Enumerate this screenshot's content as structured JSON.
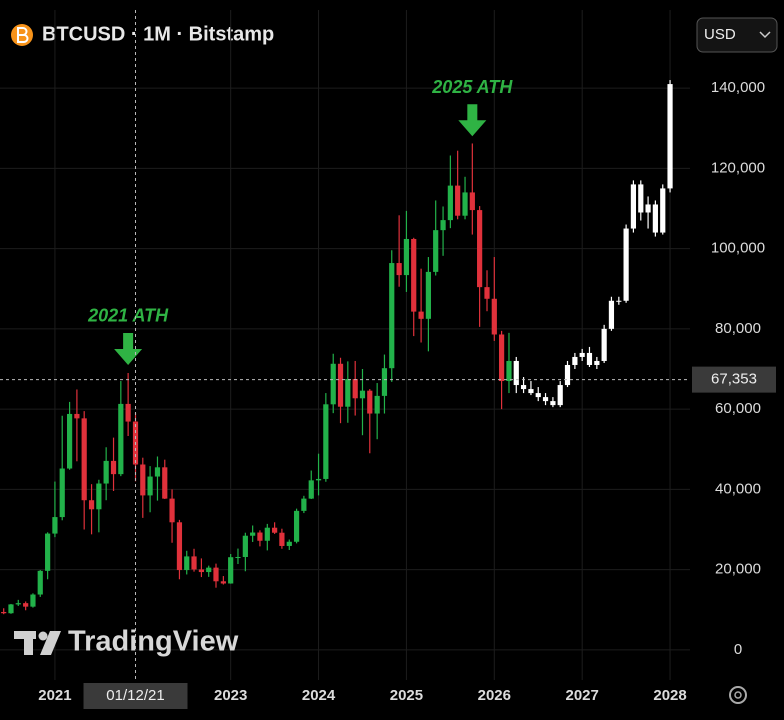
{
  "chart_data": {
    "type": "candlestick",
    "title": "BTCUSD · 1M · Bitstamp",
    "xlim": [
      2020.375,
      2028.227
    ],
    "ylim": [
      -7500,
      147000
    ],
    "xticks": [
      2021,
      2023,
      2024,
      2025,
      2026,
      2027,
      2028
    ],
    "yticks": [
      0,
      {
        "value": 20000,
        "label": "20,000"
      },
      {
        "value": 40000,
        "label": "40,000"
      },
      {
        "value": 60000,
        "label": "60,000"
      },
      {
        "value": 80000,
        "label": "80,000"
      },
      {
        "value": 100000,
        "label": "100,000"
      },
      {
        "value": 120000,
        "label": "120,000"
      },
      {
        "value": 140000,
        "label": "140,000"
      }
    ],
    "grid": true,
    "series": [
      {
        "up_color": "#22b24a",
        "down_color": "#e0313b",
        "x": [
          2020.417,
          2020.5,
          2020.583,
          2020.667,
          2020.75,
          2020.833,
          2020.917,
          2021,
          2021.083,
          2021.167,
          2021.25,
          2021.333,
          2021.417,
          2021.5,
          2021.583,
          2021.667,
          2021.75,
          2021.833,
          2021.917,
          2022,
          2022.083,
          2022.167,
          2022.25,
          2022.333,
          2022.417,
          2022.5,
          2022.583,
          2022.667,
          2022.75,
          2022.833,
          2022.917,
          2023,
          2023.083,
          2023.167,
          2023.25,
          2023.333,
          2023.417,
          2023.5,
          2023.583,
          2023.667,
          2023.75,
          2023.833,
          2023.917,
          2024,
          2024.083,
          2024.167,
          2024.25,
          2024.333,
          2024.417,
          2024.5,
          2024.583,
          2024.667,
          2024.75,
          2024.833,
          2024.917,
          2025,
          2025.083,
          2025.167,
          2025.25,
          2025.333,
          2025.417,
          2025.5,
          2025.583,
          2025.667,
          2025.75,
          2025.833,
          2025.917,
          2026,
          2026.083,
          2026.167
        ],
        "open": [
          9450,
          9140,
          11340,
          11650,
          10780,
          13800,
          19700,
          28990,
          33100,
          45200,
          58800,
          57700,
          37300,
          35040,
          41460,
          47100,
          43800,
          61300,
          56900,
          46200,
          38500,
          43200,
          45500,
          37700,
          31800,
          19900,
          23300,
          20050,
          19400,
          20500,
          17100,
          16550,
          23100,
          23150,
          28450,
          29250,
          27200,
          30450,
          29200,
          25900,
          26950,
          34650,
          37700,
          42250,
          42600,
          61200,
          71300,
          60600,
          67500,
          62700,
          64600,
          58900,
          63300,
          70200,
          96400,
          93400,
          102400,
          84300,
          82500,
          94200,
          104600,
          107100,
          115700,
          108200,
          114000,
          109600,
          90400,
          87500,
          78600,
          67000
        ],
        "high": [
          10380,
          11450,
          12470,
          12070,
          14100,
          19900,
          29300,
          41950,
          58350,
          61800,
          64900,
          59500,
          41300,
          42400,
          50500,
          52900,
          67000,
          69000,
          59100,
          47900,
          45800,
          48200,
          47400,
          40000,
          32400,
          24700,
          25200,
          22800,
          21000,
          21500,
          18400,
          23900,
          25250,
          29200,
          31000,
          29800,
          31400,
          31800,
          30200,
          27500,
          35200,
          38400,
          44700,
          48900,
          64000,
          73800,
          72800,
          71900,
          72000,
          70000,
          65000,
          66500,
          73600,
          99600,
          108300,
          109400,
          102700,
          95000,
          97900,
          112000,
          110500,
          123200,
          124400,
          117900,
          126200,
          110600,
          94600,
          97900,
          79500,
          79000
        ],
        "low": [
          8900,
          8990,
          10950,
          9880,
          10540,
          13200,
          17600,
          28100,
          32300,
          44900,
          47000,
          30000,
          28800,
          29300,
          37300,
          39600,
          43300,
          53300,
          42000,
          32900,
          34300,
          37200,
          37600,
          26700,
          17600,
          18800,
          19500,
          18150,
          18200,
          15500,
          16300,
          16500,
          21400,
          19600,
          26900,
          25800,
          24800,
          28900,
          25200,
          24900,
          26550,
          34100,
          37600,
          38500,
          41900,
          59000,
          56500,
          56600,
          58400,
          53500,
          49000,
          52500,
          58900,
          66800,
          90500,
          89200,
          78200,
          76600,
          74400,
          93300,
          98200,
          105100,
          107300,
          107300,
          103500,
          80500,
          84400,
          77000,
          60000,
          64000
        ],
        "close": [
          9140,
          11340,
          11650,
          10780,
          13800,
          19700,
          28990,
          33100,
          45200,
          58800,
          57700,
          37300,
          35040,
          41460,
          47100,
          43800,
          61300,
          56900,
          46200,
          38500,
          43200,
          45500,
          37700,
          31800,
          19900,
          23300,
          20050,
          19400,
          20500,
          17100,
          16550,
          23100,
          23150,
          28450,
          29250,
          27200,
          30450,
          29200,
          25900,
          26950,
          34650,
          37700,
          42250,
          42600,
          61200,
          71300,
          60600,
          67500,
          62700,
          64600,
          58900,
          63300,
          70200,
          96400,
          93400,
          102400,
          84300,
          82500,
          94200,
          104600,
          107100,
          115700,
          108200,
          114000,
          109600,
          90400,
          87500,
          78600,
          67000,
          72000
        ]
      },
      {
        "color": "#ffffff",
        "x": [
          2026.25,
          2026.333,
          2026.417,
          2026.5,
          2026.583,
          2026.667,
          2026.75,
          2026.833,
          2026.917,
          2027,
          2027.083,
          2027.167,
          2027.25,
          2027.333,
          2027.417,
          2027.5,
          2027.583,
          2027.667,
          2027.75,
          2027.833,
          2027.917,
          2028
        ],
        "open": [
          72000,
          66000,
          65000,
          64000,
          63000,
          62000,
          61000,
          66000,
          71000,
          73000,
          74000,
          71000,
          72000,
          80000,
          87000,
          87000,
          105000,
          116000,
          109000,
          111000,
          104000,
          115000
        ],
        "high": [
          73000,
          68000,
          67000,
          65500,
          64000,
          63000,
          67000,
          72000,
          74000,
          75000,
          75500,
          73000,
          81000,
          88000,
          88000,
          106000,
          117000,
          117000,
          113000,
          112000,
          116000,
          142000
        ],
        "low": [
          64000,
          64000,
          63500,
          62000,
          61000,
          60500,
          60500,
          65500,
          70000,
          72000,
          70500,
          70000,
          71500,
          79500,
          86000,
          86500,
          104000,
          107000,
          105000,
          103000,
          103500,
          114000
        ],
        "close": [
          66000,
          65000,
          64000,
          63000,
          62000,
          61000,
          66000,
          71000,
          73000,
          74000,
          71000,
          72000,
          80000,
          87000,
          87000,
          105000,
          116000,
          109000,
          111000,
          104000,
          115000,
          141000
        ]
      }
    ],
    "annotations": [
      {
        "text": "2021 ATH",
        "x": 2021.833,
        "y": 71000,
        "color": "#2fb344"
      },
      {
        "text": "2025 ATH",
        "x": 2025.75,
        "y": 128000,
        "color": "#2fb344"
      }
    ],
    "crosshair": {
      "x": 2021.917,
      "x_label": "01/12/21",
      "y": 67353,
      "y_label": "67,353"
    }
  },
  "currency": "USD",
  "watermark": "TradingView"
}
